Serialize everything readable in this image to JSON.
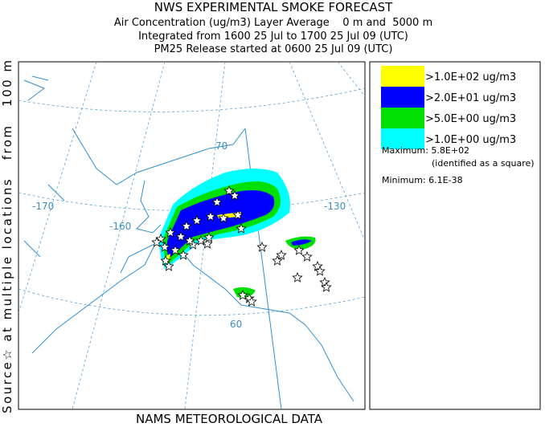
{
  "header": {
    "title": "NWS EXPERIMENTAL SMOKE FORECAST",
    "lines": [
      "Air Concentration (ug/m3) Layer Average    0 m and  5000 m",
      "Integrated from 1600 25 Jul to 1700 25 Jul 09 (UTC)",
      "PM25 Release started at 0600 25 Jul 09 (UTC)"
    ]
  },
  "side_label": "Source☆ at multiple locations   from   100 m",
  "footer": "NAMS METEOROLOGICAL DATA",
  "map": {
    "labels": [
      "-170",
      "-160",
      "-130",
      "70",
      "60"
    ]
  },
  "legend": {
    "items": [
      {
        "label": ">1.0E+02 ug/m3",
        "color": "#ffff00"
      },
      {
        "label": ">2.0E+01 ug/m3",
        "color": "#0000ff"
      },
      {
        "label": ">5.0E+00 ug/m3",
        "color": "#00e000"
      },
      {
        "label": ">1.0E+00 ug/m3",
        "color": "#00ffff"
      }
    ],
    "maximum": "Maximum: 5.8E+02",
    "maximum_note": "(identified as a square)",
    "minimum": "Minimum: 6.1E-38"
  }
}
